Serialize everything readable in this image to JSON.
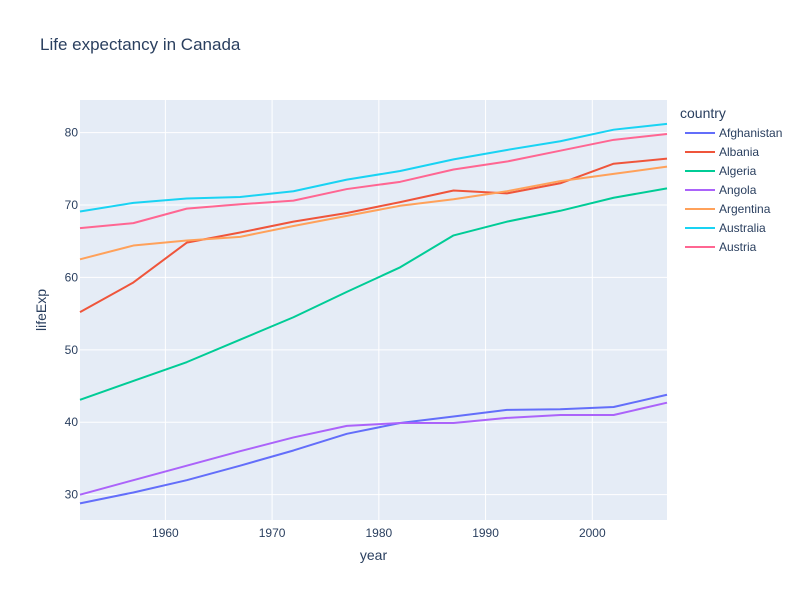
{
  "chart_data": {
    "type": "line",
    "title": "Life expectancy in Canada",
    "xlabel": "year",
    "ylabel": "lifeExp",
    "xlim": [
      1952,
      2007
    ],
    "ylim": [
      26.5,
      84.5
    ],
    "xticks": [
      1960,
      1970,
      1980,
      1990,
      2000
    ],
    "yticks": [
      30,
      40,
      50,
      60,
      70,
      80
    ],
    "grid": true,
    "legend_title": "country",
    "legend_position": "right",
    "x": [
      1952,
      1957,
      1962,
      1967,
      1972,
      1977,
      1982,
      1987,
      1992,
      1997,
      2002,
      2007
    ],
    "series": [
      {
        "name": "Afghanistan",
        "color": "#636efa",
        "values": [
          28.8,
          30.3,
          32.0,
          34.0,
          36.1,
          38.4,
          39.9,
          40.8,
          41.7,
          41.8,
          42.1,
          43.8
        ]
      },
      {
        "name": "Albania",
        "color": "#EF553B",
        "values": [
          55.2,
          59.3,
          64.8,
          66.2,
          67.7,
          68.9,
          70.4,
          72.0,
          71.6,
          73.0,
          75.7,
          76.4
        ]
      },
      {
        "name": "Algeria",
        "color": "#00cc96",
        "values": [
          43.1,
          45.7,
          48.3,
          51.4,
          54.5,
          58.0,
          61.4,
          65.8,
          67.7,
          69.2,
          71.0,
          72.3
        ]
      },
      {
        "name": "Angola",
        "color": "#ab63fa",
        "values": [
          30.0,
          32.0,
          34.0,
          36.0,
          37.9,
          39.5,
          39.9,
          39.9,
          40.6,
          41.0,
          41.0,
          42.7
        ]
      },
      {
        "name": "Argentina",
        "color": "#FFA15A",
        "values": [
          62.5,
          64.4,
          65.1,
          65.6,
          67.1,
          68.5,
          69.9,
          70.8,
          71.9,
          73.3,
          74.3,
          75.3
        ]
      },
      {
        "name": "Australia",
        "color": "#19d3f3",
        "values": [
          69.1,
          70.3,
          70.9,
          71.1,
          71.9,
          73.5,
          74.7,
          76.3,
          77.6,
          78.8,
          80.4,
          81.2
        ]
      },
      {
        "name": "Austria",
        "color": "#FF6692",
        "values": [
          66.8,
          67.5,
          69.5,
          70.1,
          70.6,
          72.2,
          73.2,
          74.9,
          76.0,
          77.5,
          79.0,
          79.8
        ]
      }
    ]
  }
}
